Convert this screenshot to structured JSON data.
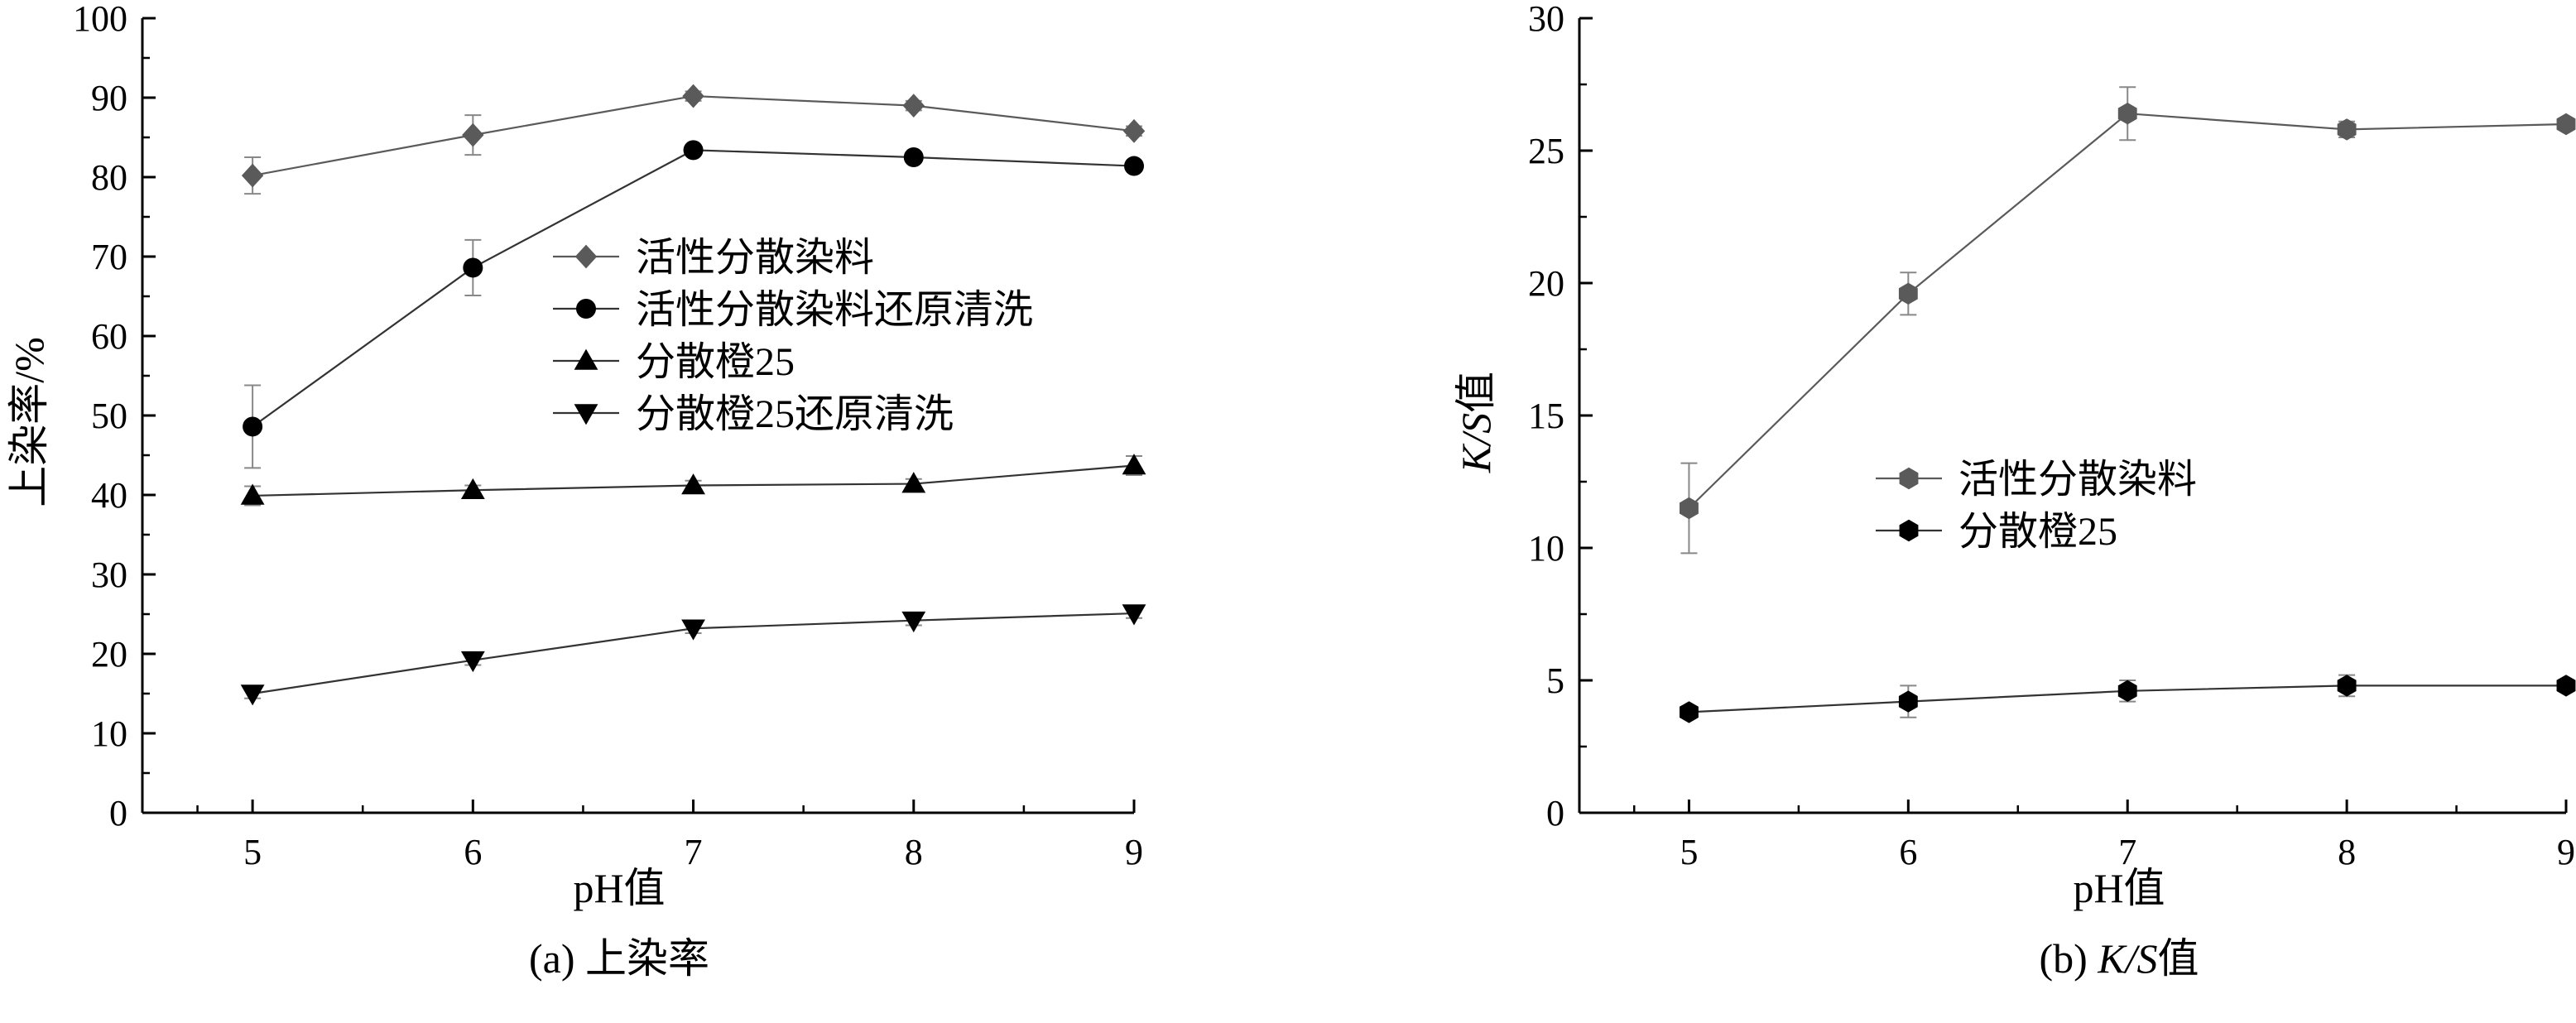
{
  "colors": {
    "gray_series": "#5a5a5a",
    "black_series": "#000000",
    "axis": "#000000",
    "error_bar": "#888888"
  },
  "chart_data": [
    {
      "type": "line",
      "caption": "(a) 上染率",
      "xlabel": "pH值",
      "ylabel": "上染率/%",
      "x": [
        5,
        6,
        7,
        8,
        9
      ],
      "xlim": [
        4.5,
        9
      ],
      "ylim": [
        0,
        100
      ],
      "yticks": [
        0,
        10,
        20,
        30,
        40,
        50,
        60,
        70,
        80,
        90,
        100
      ],
      "xticks": [
        5,
        6,
        7,
        8,
        9
      ],
      "grid": false,
      "legend_position": "center-right",
      "series": [
        {
          "name": "活性分散染料",
          "marker": "diamond",
          "color": "#5a5a5a",
          "values": [
            80.2,
            85.3,
            90.2,
            89.0,
            85.8
          ],
          "errors": [
            2.3,
            2.5,
            0.6,
            0.6,
            0.6
          ]
        },
        {
          "name": "活性分散染料还原清洗",
          "marker": "circle",
          "color": "#000000",
          "values": [
            48.6,
            68.6,
            83.4,
            82.5,
            81.4
          ],
          "errors": [
            5.2,
            3.5,
            0.6,
            0.6,
            0.6
          ]
        },
        {
          "name": "分散橙25",
          "marker": "triangle-up",
          "color": "#000000",
          "values": [
            39.9,
            40.6,
            41.2,
            41.4,
            43.7
          ],
          "errors": [
            1.2,
            0.6,
            0.6,
            0.6,
            1.2
          ]
        },
        {
          "name": "分散橙25还原清洗",
          "marker": "triangle-down",
          "color": "#000000",
          "values": [
            15.0,
            19.2,
            23.2,
            24.2,
            25.1
          ],
          "errors": [
            0.6,
            0.6,
            0.6,
            0.6,
            0.6
          ]
        }
      ]
    },
    {
      "type": "line",
      "caption_prefix": "(b) ",
      "caption_italic": "K/S",
      "caption_suffix": "值",
      "xlabel": "pH值",
      "ylabel_italic": "K/S",
      "ylabel_suffix": "值",
      "x": [
        5,
        6,
        7,
        8,
        9
      ],
      "xlim": [
        4.5,
        9
      ],
      "ylim": [
        0,
        30
      ],
      "yticks": [
        0,
        5,
        10,
        15,
        20,
        25,
        30
      ],
      "xticks": [
        5,
        6,
        7,
        8,
        9
      ],
      "grid": false,
      "legend_position": "center-right",
      "series": [
        {
          "name": "活性分散染料",
          "marker": "hexagon",
          "color": "#5a5a5a",
          "values": [
            11.5,
            19.6,
            26.4,
            25.8,
            26.0
          ],
          "errors": [
            1.7,
            0.8,
            1.0,
            0.3,
            0.2
          ]
        },
        {
          "name": "分散橙25",
          "marker": "hexagon",
          "color": "#000000",
          "values": [
            3.8,
            4.2,
            4.6,
            4.8,
            4.8
          ],
          "errors": [
            0.2,
            0.6,
            0.4,
            0.4,
            0.2
          ]
        }
      ]
    }
  ]
}
